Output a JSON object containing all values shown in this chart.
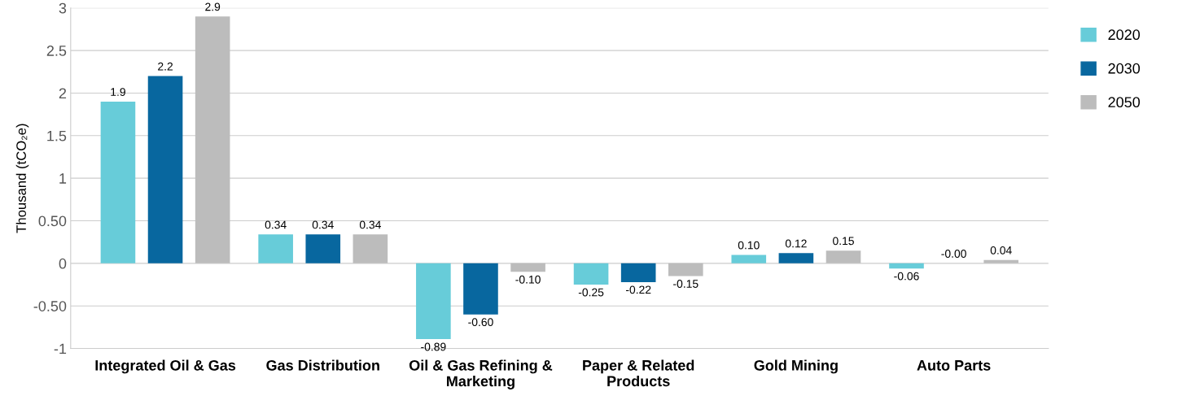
{
  "chart_data": {
    "type": "bar",
    "ylabel": "Thousand (tCO₂e)",
    "categories": [
      "Integrated Oil & Gas",
      "Gas Distribution",
      "Oil & Gas Refining &\nMarketing",
      "Paper & Related\nProducts",
      "Gold Mining",
      "Auto Parts"
    ],
    "series": [
      {
        "name": "2020",
        "color": "#67ccd9",
        "values": [
          1.9,
          0.34,
          -0.89,
          -0.25,
          0.1,
          -0.06
        ],
        "value_labels": [
          "1.9",
          "0.34",
          "-0.89",
          "-0.25",
          "0.10",
          "-0.06"
        ]
      },
      {
        "name": "2030",
        "color": "#08679f",
        "values": [
          2.2,
          0.34,
          -0.6,
          -0.22,
          0.12,
          0.0
        ],
        "value_labels": [
          "2.2",
          "0.34",
          "-0.60",
          "-0.22",
          "0.12",
          "-0.00"
        ]
      },
      {
        "name": "2050",
        "color": "#bcbcbc",
        "values": [
          2.9,
          0.34,
          -0.1,
          -0.15,
          0.15,
          0.04
        ],
        "value_labels": [
          "2.9",
          "0.34",
          "-0.10",
          "-0.15",
          "0.15",
          "0.04"
        ]
      }
    ],
    "ylim": [
      -1,
      3
    ],
    "yticks": [
      -1,
      {
        "value": -0.5,
        "label": "-0.50"
      },
      0,
      {
        "value": 0.5,
        "label": "0.50"
      },
      1,
      1.5,
      2,
      2.5,
      3
    ],
    "grid": "y",
    "legend": "right"
  }
}
